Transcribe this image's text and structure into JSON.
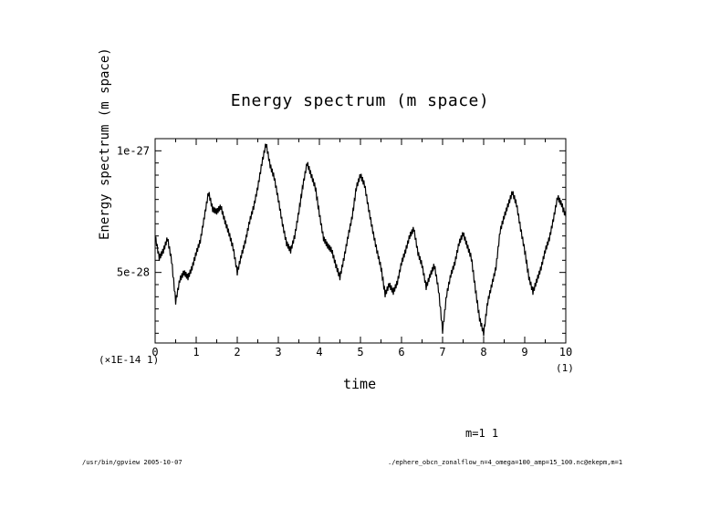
{
  "chart_data": {
    "type": "line",
    "title": "Energy spectrum (m space)",
    "xlabel": "time",
    "ylabel": "Energy spectrum (m space)",
    "x_scale_note": "(×1E-14 1)",
    "x_unit_note": "(1)",
    "xlim": [
      0,
      10
    ],
    "ylim": [
      2.1e-28,
      1.05e-27
    ],
    "x_ticks": [
      "0",
      "1",
      "2",
      "3",
      "4",
      "5",
      "6",
      "7",
      "8",
      "9",
      "10"
    ],
    "y_ticks": [
      {
        "value": 1e-27,
        "label": "1e-27"
      },
      {
        "value": 5e-28,
        "label": "5e-28"
      }
    ],
    "grid": false,
    "series": [
      {
        "name": "m=1 1",
        "x": [
          0,
          0.1,
          0.2,
          0.3,
          0.4,
          0.5,
          0.6,
          0.7,
          0.8,
          0.9,
          1.0,
          1.1,
          1.2,
          1.3,
          1.4,
          1.5,
          1.6,
          1.7,
          1.8,
          1.9,
          2.0,
          2.1,
          2.2,
          2.3,
          2.4,
          2.5,
          2.6,
          2.7,
          2.8,
          2.9,
          3.0,
          3.1,
          3.2,
          3.3,
          3.4,
          3.5,
          3.6,
          3.7,
          3.8,
          3.9,
          4.0,
          4.1,
          4.2,
          4.3,
          4.4,
          4.5,
          4.6,
          4.7,
          4.8,
          4.9,
          5.0,
          5.1,
          5.2,
          5.3,
          5.4,
          5.5,
          5.6,
          5.7,
          5.8,
          5.9,
          6.0,
          6.1,
          6.2,
          6.3,
          6.4,
          6.5,
          6.6,
          6.7,
          6.8,
          6.9,
          7.0,
          7.1,
          7.2,
          7.3,
          7.4,
          7.5,
          7.6,
          7.7,
          7.8,
          7.9,
          8.0,
          8.1,
          8.2,
          8.3,
          8.4,
          8.5,
          8.6,
          8.7,
          8.8,
          8.9,
          9.0,
          9.1,
          9.2,
          9.3,
          9.4,
          9.5,
          9.6,
          9.7,
          9.8,
          9.9,
          10.0
        ],
        "y": [
          6.5e-28,
          5.6e-28,
          5.9e-28,
          6.4e-28,
          5.5e-28,
          3.8e-28,
          4.7e-28,
          5e-28,
          4.8e-28,
          5.2e-28,
          5.8e-28,
          6.3e-28,
          7.3e-28,
          8.3e-28,
          7.6e-28,
          7.5e-28,
          7.7e-28,
          7.1e-28,
          6.6e-28,
          6e-28,
          5e-28,
          5.7e-28,
          6.3e-28,
          7.1e-28,
          7.7e-28,
          8.5e-28,
          9.5e-28,
          1.03e-27,
          9.4e-28,
          8.9e-28,
          8e-28,
          7e-28,
          6.2e-28,
          5.9e-28,
          6.5e-28,
          7.5e-28,
          8.6e-28,
          9.5e-28,
          9e-28,
          8.5e-28,
          7.4e-28,
          6.4e-28,
          6.1e-28,
          5.9e-28,
          5.3e-28,
          4.8e-28,
          5.6e-28,
          6.5e-28,
          7.3e-28,
          8.5e-28,
          9e-28,
          8.6e-28,
          7.6e-28,
          6.7e-28,
          5.9e-28,
          5.2e-28,
          4.1e-28,
          4.5e-28,
          4.2e-28,
          4.6e-28,
          5.4e-28,
          5.9e-28,
          6.5e-28,
          6.8e-28,
          5.8e-28,
          5.3e-28,
          4.4e-28,
          4.9e-28,
          5.3e-28,
          4.3e-28,
          2.6e-28,
          4.1e-28,
          4.9e-28,
          5.4e-28,
          6.2e-28,
          6.6e-28,
          6.1e-28,
          5.6e-28,
          4.3e-28,
          3.1e-28,
          2.5e-28,
          3.8e-28,
          4.5e-28,
          5.2e-28,
          6.7e-28,
          7.3e-28,
          7.8e-28,
          8.3e-28,
          7.8e-28,
          6.8e-28,
          5.9e-28,
          4.8e-28,
          4.2e-28,
          4.7e-28,
          5.2e-28,
          5.9e-28,
          6.4e-28,
          7.2e-28,
          8.1e-28,
          7.8e-28,
          7.3e-28
        ]
      }
    ]
  },
  "legend_text": "m=1 1",
  "footer": {
    "left": "/usr/bin/gpview  2005-10-07",
    "right": "./ephere_obcn_zonalflow_n=4_omega=100_amp=15_100.nc@ekepm,m=1"
  }
}
